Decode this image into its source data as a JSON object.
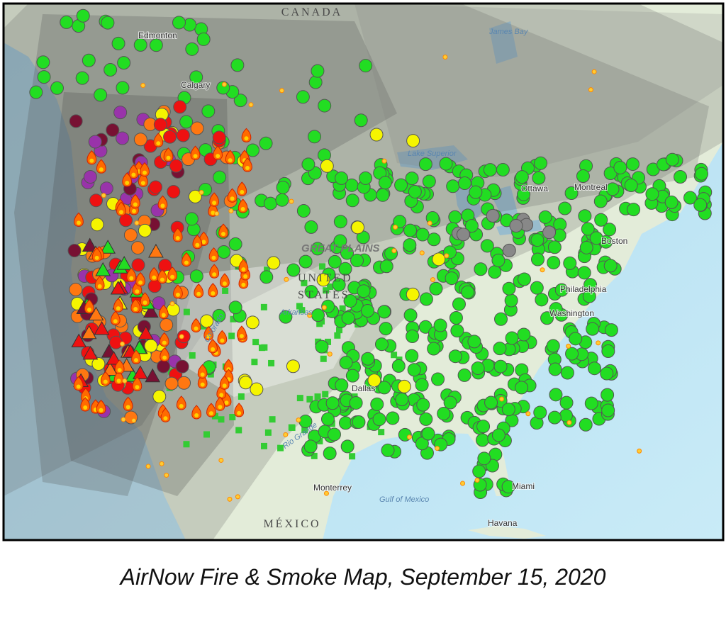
{
  "map": {
    "labels": [
      "CANADA",
      "Edmonton",
      "Calgary",
      "James Bay",
      "Ottawa",
      "Montreal",
      "GREAT PLAINS",
      "UNITED",
      "STATES",
      "Boston",
      "Philadelphia",
      "Washington",
      "Arkansas",
      "Colorado",
      "Dallas",
      "Rio Grande",
      "Monterrey",
      "Gulf of Mexico",
      "Miami",
      "MÉXICO",
      "Havana",
      "Lake Superior"
    ]
  },
  "caption": "AirNow Fire & Smoke Map, September 15, 2020"
}
